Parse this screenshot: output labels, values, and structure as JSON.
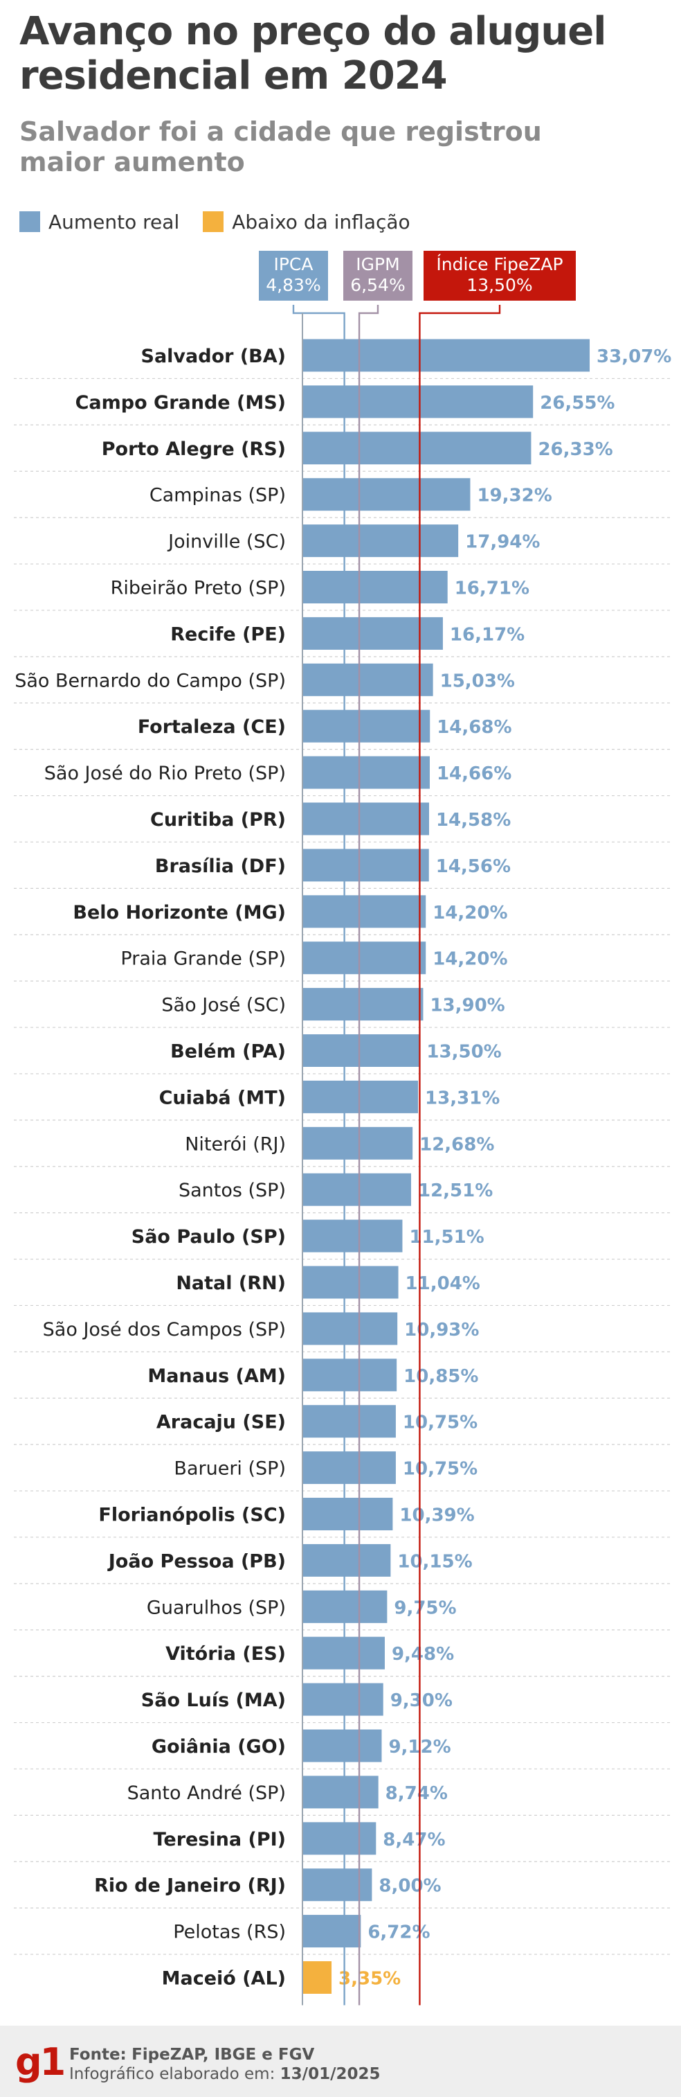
{
  "header": {
    "title_line1": "Avanço no preço do aluguel",
    "title_line2": "residencial em 2024",
    "subtitle_line1": "Salvador foi a cidade que registrou",
    "subtitle_line2": "maior aumento"
  },
  "legend": {
    "real_label": "Aumento real",
    "below_label": "Abaixo da inflação",
    "real_color": "#7ba3c8",
    "below_color": "#f4b13e"
  },
  "references": [
    {
      "name": "IPCA",
      "value_label": "4,83%",
      "value": 4.83,
      "color": "#7ba3c8"
    },
    {
      "name": "IGPM",
      "value_label": "6,54%",
      "value": 6.54,
      "color": "#a391a6"
    },
    {
      "name": "Índice FipeZAP",
      "value_label": "13,50%",
      "value": 13.5,
      "color": "#c4170c"
    }
  ],
  "chart_data": {
    "type": "bar",
    "orientation": "horizontal",
    "title": "Avanço no preço do aluguel residencial em 2024",
    "subtitle": "Salvador foi a cidade que registrou maior aumento",
    "xlim": [
      0,
      35
    ],
    "grid": false,
    "legend_position": "top-left",
    "categories": [
      "Salvador (BA)",
      "Campo Grande (MS)",
      "Porto Alegre (RS)",
      "Campinas (SP)",
      "Joinville (SC)",
      "Ribeirão Preto (SP)",
      "Recife (PE)",
      "São Bernardo do Campo (SP)",
      "Fortaleza (CE)",
      "São José do Rio Preto (SP)",
      "Curitiba (PR)",
      "Brasília (DF)",
      "Belo Horizonte (MG)",
      "Praia Grande (SP)",
      "São José (SC)",
      "Belém (PA)",
      "Cuiabá (MT)",
      "Niterói (RJ)",
      "Santos (SP)",
      "São Paulo (SP)",
      "Natal (RN)",
      "São José dos Campos (SP)",
      "Manaus (AM)",
      "Aracaju (SE)",
      "Barueri (SP)",
      "Florianópolis (SC)",
      "João Pessoa (PB)",
      "Guarulhos (SP)",
      "Vitória (ES)",
      "São Luís (MA)",
      "Goiânia (GO)",
      "Santo André (SP)",
      "Teresina (PI)",
      "Rio de Janeiro (RJ)",
      "Pelotas (RS)",
      "Maceió (AL)"
    ],
    "values": [
      33.07,
      26.55,
      26.33,
      19.32,
      17.94,
      16.71,
      16.17,
      15.03,
      14.68,
      14.66,
      14.58,
      14.56,
      14.2,
      14.2,
      13.9,
      13.5,
      13.31,
      12.68,
      12.51,
      11.51,
      11.04,
      10.93,
      10.85,
      10.75,
      10.75,
      10.39,
      10.15,
      9.75,
      9.48,
      9.3,
      9.12,
      8.74,
      8.47,
      8.0,
      6.72,
      3.35
    ],
    "value_labels": [
      "33,07%",
      "26,55%",
      "26,33%",
      "19,32%",
      "17,94%",
      "16,71%",
      "16,17%",
      "15,03%",
      "14,68%",
      "14,66%",
      "14,58%",
      "14,56%",
      "14,20%",
      "14,20%",
      "13,90%",
      "13,50%",
      "13,31%",
      "12,68%",
      "12,51%",
      "11,51%",
      "11,04%",
      "10,93%",
      "10,85%",
      "10,75%",
      "10,75%",
      "10,39%",
      "10,15%",
      "9,75%",
      "9,48%",
      "9,30%",
      "9,12%",
      "8,74%",
      "8,47%",
      "8,00%",
      "6,72%",
      "3,35%"
    ],
    "bold": [
      true,
      true,
      true,
      false,
      false,
      false,
      true,
      false,
      true,
      false,
      true,
      true,
      true,
      false,
      false,
      true,
      true,
      false,
      false,
      true,
      true,
      false,
      true,
      true,
      false,
      true,
      true,
      false,
      true,
      true,
      true,
      false,
      true,
      true,
      false,
      true
    ],
    "below_inflation": [
      false,
      false,
      false,
      false,
      false,
      false,
      false,
      false,
      false,
      false,
      false,
      false,
      false,
      false,
      false,
      false,
      false,
      false,
      false,
      false,
      false,
      false,
      false,
      false,
      false,
      false,
      false,
      false,
      false,
      false,
      false,
      false,
      false,
      false,
      false,
      true
    ]
  },
  "footer": {
    "logo": "g1",
    "source_label": "Fonte:",
    "source": "FipeZAP, IBGE e FGV",
    "credit_label": "Infográfico elaborado em:",
    "date": "13/01/2025"
  }
}
